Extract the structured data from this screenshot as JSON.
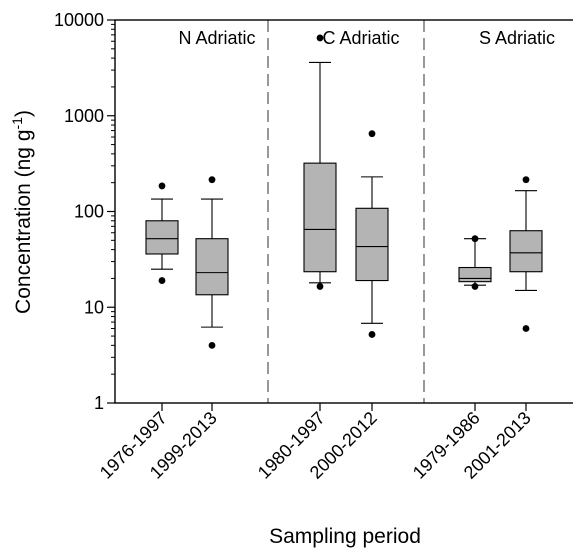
{
  "chart_data": {
    "type": "box",
    "xlabel": "Sampling period",
    "ylabel_main": "Concentration (ng g",
    "ylabel_sup": "-1",
    "ylabel_close": ")",
    "y_scale": "log",
    "ylim": [
      1,
      10000
    ],
    "y_ticks": [
      {
        "value": 1,
        "label": "1"
      },
      {
        "value": 10,
        "label": "10"
      },
      {
        "value": 100,
        "label": "100"
      },
      {
        "value": 1000,
        "label": "1000"
      },
      {
        "value": 10000,
        "label": "10000"
      }
    ],
    "grid": false,
    "colors": {
      "box_fill": "#b4b4b4",
      "stroke": "#000000",
      "divider": "#555555"
    },
    "regions": [
      {
        "name": "N Adriatic",
        "categories": [
          0,
          1
        ]
      },
      {
        "name": "C Adriatic",
        "categories": [
          2,
          3
        ]
      },
      {
        "name": "S Adriatic",
        "categories": [
          4,
          5
        ]
      }
    ],
    "categories": [
      "1976-1997",
      "1999-2013",
      "1980-1997",
      "2000-2012",
      "1979-1986",
      "2001-2013"
    ],
    "boxes": [
      {
        "whisker_low": 25,
        "q1": 36,
        "median": 52,
        "q3": 80,
        "whisker_high": 135,
        "outliers": [
          19,
          185
        ]
      },
      {
        "whisker_low": 6.2,
        "q1": 13.5,
        "median": 23,
        "q3": 52,
        "whisker_high": 135,
        "outliers": [
          4,
          215
        ]
      },
      {
        "whisker_low": 18,
        "q1": 23.5,
        "median": 65,
        "q3": 320,
        "whisker_high": 3600,
        "outliers": [
          16.5,
          6500
        ]
      },
      {
        "whisker_low": 6.8,
        "q1": 19,
        "median": 43,
        "q3": 108,
        "whisker_high": 230,
        "outliers": [
          5.2,
          650
        ]
      },
      {
        "whisker_low": 17,
        "q1": 18.5,
        "median": 20,
        "q3": 26,
        "whisker_high": 52,
        "outliers": [
          16.5,
          52
        ]
      },
      {
        "whisker_low": 15,
        "q1": 23.5,
        "median": 37,
        "q3": 63,
        "whisker_high": 165,
        "outliers": [
          6,
          215
        ]
      }
    ]
  }
}
